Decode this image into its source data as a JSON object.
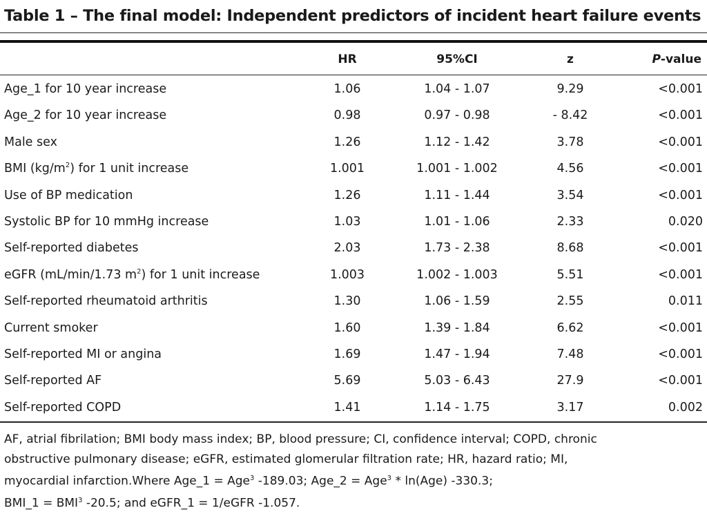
{
  "title": "Table 1 – The final model: Independent predictors of incident heart failure events",
  "columns": {
    "hr": "HR",
    "ci": "95%CI",
    "z": "z",
    "p_italic": "P",
    "p_suffix": "-value"
  },
  "rows": [
    {
      "label": "Age_1 for 10 year increase",
      "hr": "1.06",
      "ci": "1.04 - 1.07",
      "z": "9.29",
      "p": "<0.001"
    },
    {
      "label": "Age_2 for 10 year increase",
      "hr": "0.98",
      "ci": "0.97 - 0.98",
      "z": "- 8.42",
      "p": "<0.001"
    },
    {
      "label": "Male sex",
      "hr": "1.26",
      "ci": "1.12 - 1.42",
      "z": "3.78",
      "p": "<0.001"
    },
    {
      "label_pre": "BMI (kg/m",
      "label_sup": "2",
      "label_post": ") for 1 unit increase",
      "hr": "1.001",
      "ci": "1.001 - 1.002",
      "z": "4.56",
      "p": "<0.001"
    },
    {
      "label": "Use of BP medication",
      "hr": "1.26",
      "ci": "1.11 - 1.44",
      "z": "3.54",
      "p": "<0.001"
    },
    {
      "label": "Systolic BP for 10 mmHg increase",
      "hr": "1.03",
      "ci": "1.01 - 1.06",
      "z": "2.33",
      "p": "0.020"
    },
    {
      "label": "Self-reported diabetes",
      "hr": "2.03",
      "ci": "1.73 - 2.38",
      "z": "8.68",
      "p": "<0.001"
    },
    {
      "label_pre": "eGFR (mL/min/1.73 m",
      "label_sup": "2",
      "label_post": ") for 1 unit increase",
      "hr": "1.003",
      "ci": "1.002 - 1.003",
      "z": "5.51",
      "p": "<0.001"
    },
    {
      "label": "Self-reported rheumatoid arthritis",
      "hr": "1.30",
      "ci": "1.06 - 1.59",
      "z": "2.55",
      "p": "0.011"
    },
    {
      "label": "Current smoker",
      "hr": "1.60",
      "ci": "1.39 - 1.84",
      "z": "6.62",
      "p": "<0.001"
    },
    {
      "label": "Self-reported MI or angina",
      "hr": "1.69",
      "ci": "1.47 - 1.94",
      "z": "7.48",
      "p": "<0.001"
    },
    {
      "label": "Self-reported AF",
      "hr": "5.69",
      "ci": "5.03 - 6.43",
      "z": "27.9",
      "p": "<0.001"
    },
    {
      "label": "Self-reported COPD",
      "hr": "1.41",
      "ci": "1.14 - 1.75",
      "z": "3.17",
      "p": "0.002"
    }
  ],
  "footnote": {
    "line1": "AF, atrial fibrilation;  BMI body mass index; BP, blood pressure; CI, confidence interval; COPD, chronic",
    "line2": "obstructive pulmonary disease; eGFR, estimated glomerular filtration rate; HR, hazard ratio; MI,",
    "line3_a": "myocardial infarction.Where Age_1 = Age",
    "line3_sup1": "3",
    "line3_b": " -189.03; Age_2 = Age",
    "line3_sup2": "3",
    "line3_c": " * ln(Age) -330.3;",
    "line4_a": "BMI_1 = BMI",
    "line4_sup": "3",
    "line4_b": " -20.5; and eGFR_1 = 1/eGFR -1.057."
  }
}
